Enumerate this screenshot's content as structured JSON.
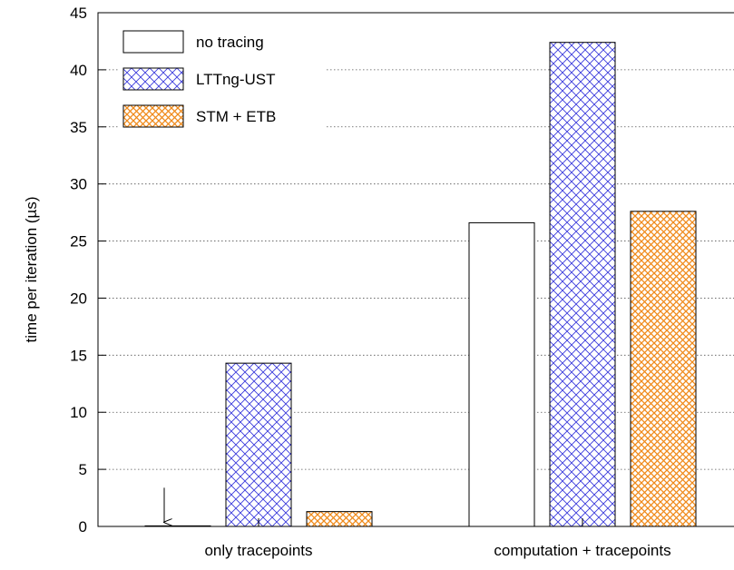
{
  "chart_data": {
    "type": "bar",
    "title": "",
    "xlabel": "",
    "ylabel": "time per iteration (µs)",
    "ylim": [
      0,
      45
    ],
    "yticks": [
      0,
      5,
      10,
      15,
      20,
      25,
      30,
      35,
      40,
      45
    ],
    "grid": "horizontal dotted",
    "legend_position": "top-left",
    "categories": [
      "only tracepoints",
      "computation + tracepoints"
    ],
    "series": [
      {
        "name": "no tracing",
        "values": [
          0.05,
          26.6
        ],
        "color": "#ffffff",
        "pattern": "none"
      },
      {
        "name": "LTTng-UST",
        "values": [
          14.3,
          42.4
        ],
        "color": "#3a3adc",
        "pattern": "crosshatch"
      },
      {
        "name": "STM + ETB",
        "values": [
          1.3,
          27.6
        ],
        "color": "#f08a1a",
        "pattern": "crosshatch"
      }
    ],
    "annotations": [
      {
        "type": "arrow",
        "category": "only tracepoints",
        "series": "no tracing",
        "direction": "down"
      }
    ]
  }
}
